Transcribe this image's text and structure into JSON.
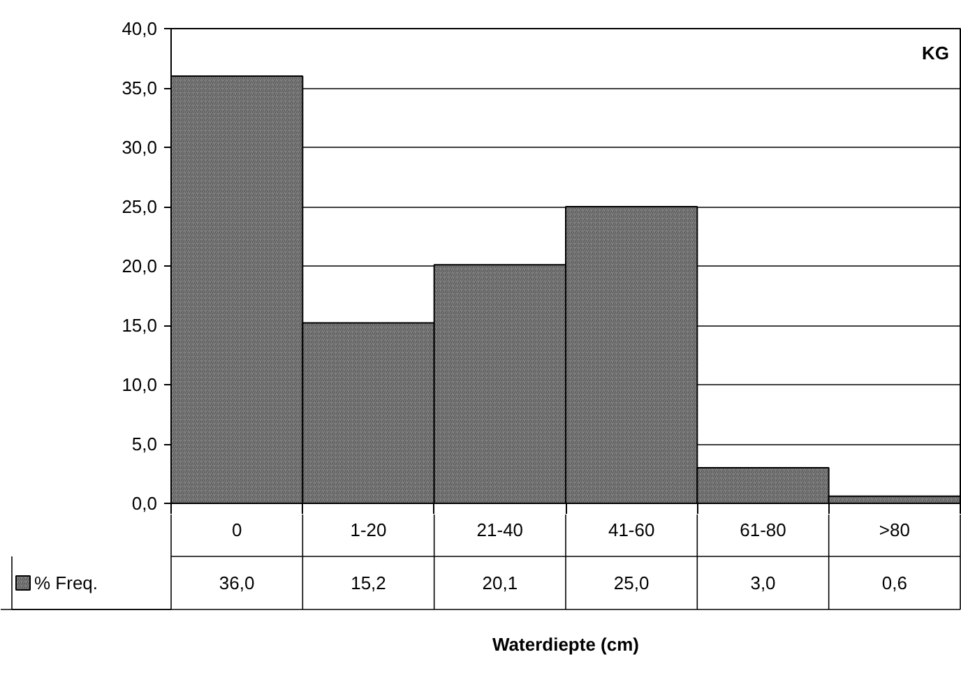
{
  "chart_data": {
    "type": "bar",
    "categories": [
      "0",
      "1-20",
      "21-40",
      "41-60",
      "61-80",
      ">80"
    ],
    "series": [
      {
        "name": "% Freq.",
        "color": "#808080",
        "values": [
          36.0,
          15.2,
          20.1,
          25.0,
          3.0,
          0.6
        ],
        "value_labels": [
          "36,0",
          "15,2",
          "20,1",
          "25,0",
          "3,0",
          "0,6"
        ]
      }
    ],
    "annotations": [
      "KG",
      "Waterdiepte (cm)"
    ],
    "ylim": [
      0,
      40
    ],
    "yticks": [
      {
        "value": 0,
        "label": "0,0"
      },
      {
        "value": 5,
        "label": "5,0"
      },
      {
        "value": 10,
        "label": "10,0"
      },
      {
        "value": 15,
        "label": "15,0"
      },
      {
        "value": 20,
        "label": "20,0"
      },
      {
        "value": 25,
        "label": "25,0"
      },
      {
        "value": 30,
        "label": "30,0"
      },
      {
        "value": 35,
        "label": "35,0"
      },
      {
        "value": 40,
        "label": "40,0"
      }
    ],
    "grid": "y",
    "legend": "bottom left"
  }
}
